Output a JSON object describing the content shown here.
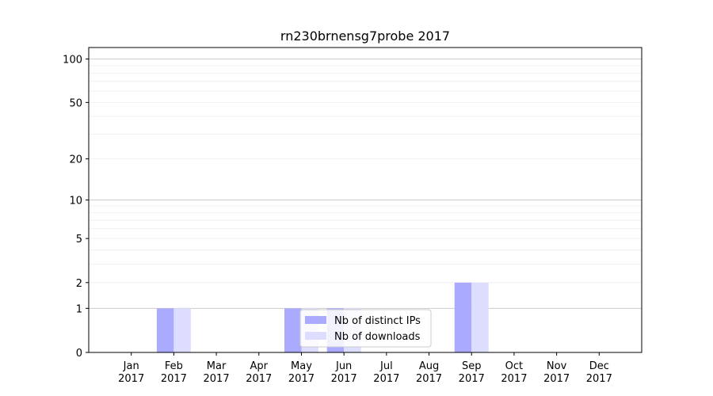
{
  "chart_data": {
    "type": "bar",
    "title": "rn230brnensg7probe 2017",
    "categories": [
      "Jan",
      "Feb",
      "Mar",
      "Apr",
      "May",
      "Jun",
      "Jul",
      "Aug",
      "Sep",
      "Oct",
      "Nov",
      "Dec"
    ],
    "category_year": "2017",
    "series": [
      {
        "name": "Nb of distinct IPs",
        "values": [
          0,
          1,
          0,
          0,
          1,
          1,
          0,
          0,
          2,
          0,
          0,
          0
        ],
        "color": "#aaaaff"
      },
      {
        "name": "Nb of downloads",
        "values": [
          0,
          1,
          0,
          0,
          1,
          1,
          0,
          0,
          2,
          0,
          0,
          0
        ],
        "color": "#ddddff"
      }
    ],
    "yscale": "symlog",
    "ylim": [
      0,
      120
    ],
    "y_ticks": [
      0,
      1,
      2,
      5,
      10,
      20,
      50,
      100
    ],
    "grid": true,
    "legend_position": "lower-center"
  }
}
